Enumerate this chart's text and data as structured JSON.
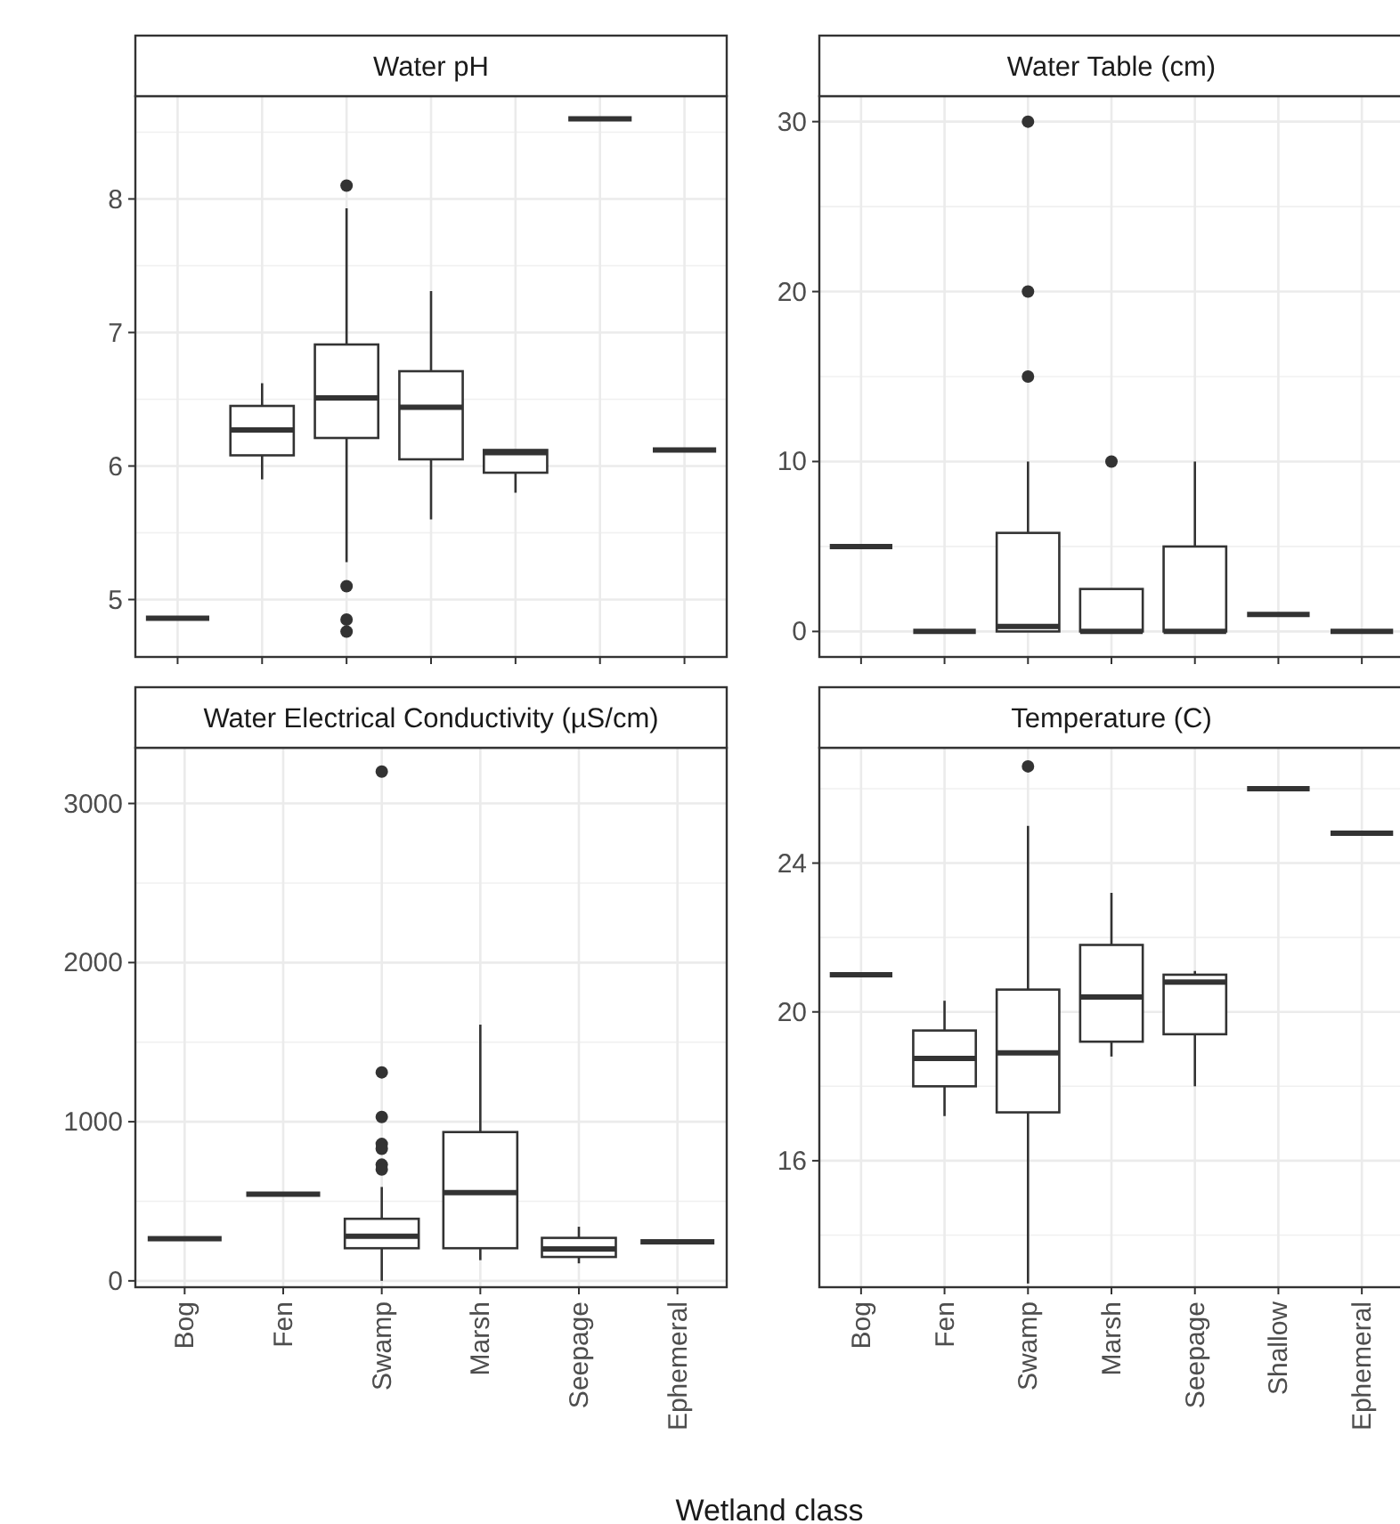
{
  "chart_data": [
    {
      "type": "box",
      "title": "Water pH",
      "categories": [
        null,
        null,
        null,
        null,
        null,
        null,
        null
      ],
      "ylim": [
        4.57,
        8.77
      ],
      "yticks": [
        5,
        6,
        7,
        8
      ],
      "grid": true,
      "tick_labels": "y",
      "boxes": [
        {
          "low": 4.86,
          "q1": 4.86,
          "median": 4.86,
          "q3": 4.86,
          "high": 4.86
        },
        {
          "low": 5.9,
          "q1": 6.08,
          "median": 6.27,
          "q3": 6.45,
          "high": 6.62
        },
        {
          "low": 5.28,
          "q1": 6.21,
          "median": 6.51,
          "q3": 6.91,
          "high": 7.93,
          "outliers": [
            8.1,
            5.1,
            4.85,
            4.76
          ]
        },
        {
          "low": 5.6,
          "q1": 6.05,
          "median": 6.44,
          "q3": 6.71,
          "high": 7.31
        },
        {
          "low": 5.8,
          "q1": 5.95,
          "median": 6.1,
          "q3": 6.12,
          "high": 6.12
        },
        {
          "low": 8.6,
          "q1": 8.6,
          "median": 8.6,
          "q3": 8.6,
          "high": 8.6
        },
        {
          "low": 6.12,
          "q1": 6.12,
          "median": 6.12,
          "q3": 6.12,
          "high": 6.12
        }
      ]
    },
    {
      "type": "box",
      "title": "Water Table (cm)",
      "categories": [
        null,
        null,
        null,
        null,
        null,
        null,
        null
      ],
      "ylim": [
        -1.5,
        31.5
      ],
      "yticks": [
        0,
        10,
        20,
        30
      ],
      "grid": true,
      "tick_labels": "y",
      "boxes": [
        {
          "low": 5,
          "q1": 5,
          "median": 5,
          "q3": 5,
          "high": 5
        },
        {
          "low": 0,
          "q1": 0,
          "median": 0,
          "q3": 0,
          "high": 0
        },
        {
          "low": 0,
          "q1": 0,
          "median": 0.3,
          "q3": 5.8,
          "high": 10,
          "outliers": [
            30,
            20,
            15
          ]
        },
        {
          "low": 0,
          "q1": 0,
          "median": 0,
          "q3": 2.5,
          "high": 2.5,
          "outliers": [
            10
          ]
        },
        {
          "low": 0,
          "q1": 0,
          "median": 0,
          "q3": 5,
          "high": 10
        },
        {
          "low": 1,
          "q1": 1,
          "median": 1,
          "q3": 1,
          "high": 1
        },
        {
          "low": 0,
          "q1": 0,
          "median": 0,
          "q3": 0,
          "high": 0
        }
      ]
    },
    {
      "type": "box",
      "title": "Water Electrical Conductivity (µS/cm)",
      "xlabel": "Wetland class",
      "categories": [
        "Bog",
        "Fen",
        "Swamp",
        "Marsh",
        "Seepage",
        "Ephemeral"
      ],
      "ylim": [
        -40,
        3350
      ],
      "yticks": [
        0,
        1000,
        2000,
        3000
      ],
      "grid": true,
      "boxes": [
        {
          "low": 265,
          "q1": 265,
          "median": 265,
          "q3": 265,
          "high": 265
        },
        {
          "low": 545,
          "q1": 545,
          "median": 545,
          "q3": 545,
          "high": 545
        },
        {
          "low": 0,
          "q1": 205,
          "median": 280,
          "q3": 390,
          "high": 590,
          "outliers": [
            3200,
            1310,
            1030,
            860,
            830,
            730,
            700
          ]
        },
        {
          "low": 130,
          "q1": 205,
          "median": 555,
          "q3": 935,
          "high": 1610
        },
        {
          "low": 110,
          "q1": 150,
          "median": 200,
          "q3": 270,
          "high": 340
        },
        {
          "low": 245,
          "q1": 245,
          "median": 245,
          "q3": 245,
          "high": 245
        }
      ]
    },
    {
      "type": "box",
      "title": "Temperature (C)",
      "categories": [
        "Bog",
        "Fen",
        "Swamp",
        "Marsh",
        "Seepage",
        "Shallow",
        "Ephemeral"
      ],
      "ylim": [
        12.6,
        27.1
      ],
      "yticks": [
        16,
        20,
        24
      ],
      "grid": true,
      "boxes": [
        {
          "low": 21,
          "q1": 21,
          "median": 21,
          "q3": 21,
          "high": 21
        },
        {
          "low": 17.2,
          "q1": 18,
          "median": 18.75,
          "q3": 19.5,
          "high": 20.3
        },
        {
          "low": 12.7,
          "q1": 17.3,
          "median": 18.9,
          "q3": 20.6,
          "high": 25,
          "outliers": [
            26.6
          ]
        },
        {
          "low": 18.8,
          "q1": 19.2,
          "median": 20.4,
          "q3": 21.8,
          "high": 23.2
        },
        {
          "low": 18,
          "q1": 19.4,
          "median": 20.8,
          "q3": 21,
          "high": 21.1
        },
        {
          "low": 26,
          "q1": 26,
          "median": 26,
          "q3": 26,
          "high": 26
        },
        {
          "low": 24.8,
          "q1": 24.8,
          "median": 24.8,
          "q3": 24.8,
          "high": 24.8
        }
      ]
    }
  ]
}
